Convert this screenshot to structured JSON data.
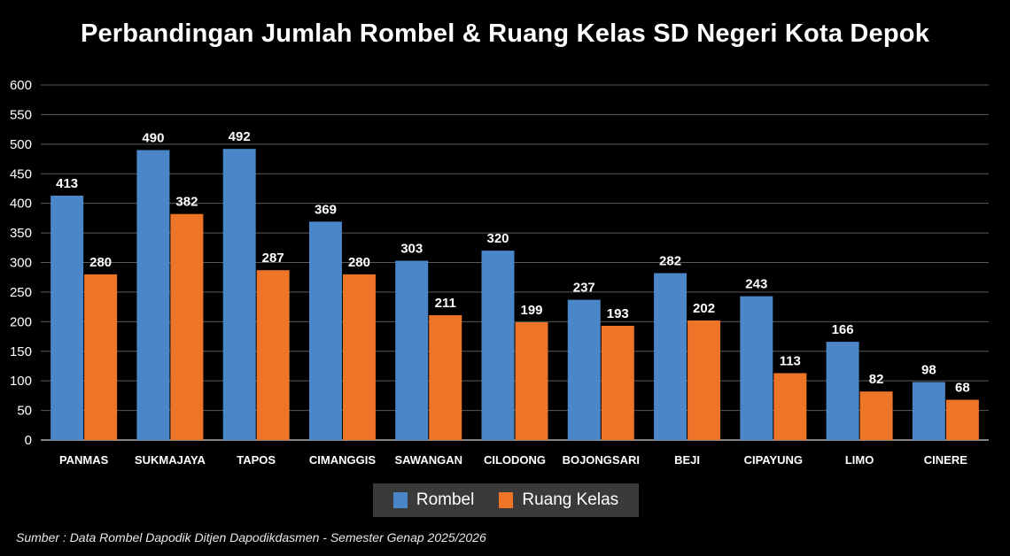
{
  "chart_data": {
    "type": "bar",
    "title": "Perbandingan Jumlah Rombel & Ruang Kelas SD Negeri Kota Depok",
    "categories": [
      "PANMAS",
      "SUKMAJAYA",
      "TAPOS",
      "CIMANGGIS",
      "SAWANGAN",
      "CILODONG",
      "BOJONGSARI",
      "BEJI",
      "CIPAYUNG",
      "LIMO",
      "CINERE"
    ],
    "series": [
      {
        "name": "Rombel",
        "color": "#4a86c8",
        "values": [
          413,
          490,
          492,
          369,
          303,
          320,
          237,
          282,
          243,
          166,
          98
        ]
      },
      {
        "name": "Ruang Kelas",
        "color": "#ee7428",
        "values": [
          280,
          382,
          287,
          280,
          211,
          199,
          193,
          202,
          113,
          82,
          68
        ]
      }
    ],
    "ylim": [
      0,
      600
    ],
    "yticks": [
      0,
      50,
      100,
      150,
      200,
      250,
      300,
      350,
      400,
      450,
      500,
      550,
      600
    ],
    "grid": true,
    "legend_position": "bottom",
    "xlabel": "",
    "ylabel": ""
  },
  "source_note": "Sumber : Data Rombel Dapodik Ditjen Dapodikdasmen - Semester Genap 2025/2026"
}
